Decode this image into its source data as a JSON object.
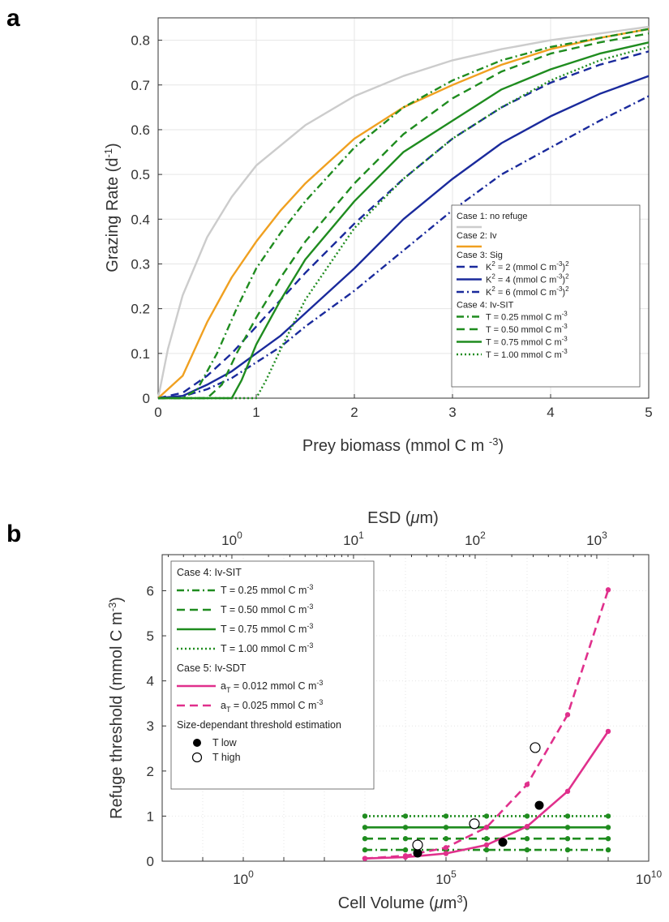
{
  "panels": {
    "a": "a",
    "b": "b"
  },
  "chart_data": [
    {
      "type": "line",
      "panel": "a",
      "xlabel": "Prey biomass (mmol C m -3)",
      "xlabel_parts": {
        "main": "Prey biomass (mmol C m ",
        "sup": "-3",
        "close": ")"
      },
      "ylabel_parts": {
        "main": "Grazing Rate (d",
        "sup": "-1",
        "close": ")"
      },
      "xlim": [
        0,
        5
      ],
      "ylim": [
        0,
        0.85
      ],
      "xticks": [
        "0",
        "1",
        "2",
        "3",
        "4",
        "5"
      ],
      "yticks": [
        "0",
        "0.1",
        "0.2",
        "0.3",
        "0.4",
        "0.5",
        "0.6",
        "0.7",
        "0.8"
      ],
      "grid": true,
      "legend_position": "bottom-right",
      "colors": {
        "grey": "#cccccc",
        "orange": "#f0a020",
        "blue": "#1a2a9c",
        "green": "#1f8c1f"
      },
      "legend": [
        {
          "label": "Case 1: no refuge",
          "header": true,
          "swatch": "grey"
        },
        {
          "label": "Case 2: Iv",
          "header": true,
          "swatch": "orange"
        },
        {
          "label": "Case 3: Sig",
          "header": true
        },
        {
          "label": "K",
          "sup1": "2",
          "mid": " = 2 (mmol C m",
          "sup2": "-3",
          "end": ")",
          "sup3": "2",
          "color": "blue",
          "dash": "dashed"
        },
        {
          "label": "K",
          "sup1": "2",
          "mid": " = 4 (mmol C m",
          "sup2": "-3",
          "end": ")",
          "sup3": "2",
          "color": "blue",
          "dash": "solid"
        },
        {
          "label": "K",
          "sup1": "2",
          "mid": " = 6 (mmol C m",
          "sup2": "-3",
          "end": ")",
          "sup3": "2",
          "color": "blue",
          "dash": "dashdot"
        },
        {
          "label": "Case 4: Iv-SIT",
          "header": true
        },
        {
          "label": "T = 0.25 mmol C m",
          "sup1": "-3",
          "color": "green",
          "dash": "dashdot"
        },
        {
          "label": "T = 0.50 mmol C m",
          "sup1": "-3",
          "color": "green",
          "dash": "dashed"
        },
        {
          "label": "T = 0.75 mmol C m",
          "sup1": "-3",
          "color": "green",
          "dash": "solid"
        },
        {
          "label": "T = 1.00 mmol C m",
          "sup1": "-3",
          "color": "green",
          "dash": "dotted"
        }
      ],
      "series": [
        {
          "color": "grey",
          "dash": "solid",
          "x": [
            0,
            0.1,
            0.25,
            0.5,
            0.75,
            1,
            1.5,
            2,
            2.5,
            3,
            3.5,
            4,
            4.5,
            5
          ],
          "y": [
            0,
            0.11,
            0.23,
            0.36,
            0.45,
            0.52,
            0.61,
            0.675,
            0.72,
            0.755,
            0.78,
            0.8,
            0.815,
            0.83
          ]
        },
        {
          "color": "orange",
          "dash": "solid",
          "x": [
            0,
            0.25,
            0.5,
            0.75,
            1,
            1.25,
            1.5,
            2,
            2.5,
            3,
            3.5,
            4,
            4.5,
            5
          ],
          "y": [
            0,
            0.05,
            0.17,
            0.27,
            0.35,
            0.42,
            0.48,
            0.58,
            0.65,
            0.7,
            0.745,
            0.78,
            0.805,
            0.825
          ]
        },
        {
          "color": "blue",
          "dash": "dashed",
          "x": [
            0,
            0.25,
            0.5,
            0.75,
            1,
            1.25,
            1.5,
            2,
            2.5,
            3,
            3.5,
            4,
            4.5,
            5
          ],
          "y": [
            0,
            0.012,
            0.05,
            0.1,
            0.16,
            0.22,
            0.28,
            0.39,
            0.49,
            0.58,
            0.65,
            0.705,
            0.745,
            0.775
          ]
        },
        {
          "color": "blue",
          "dash": "solid",
          "x": [
            0,
            0.25,
            0.5,
            0.75,
            1,
            1.25,
            1.5,
            2,
            2.5,
            3,
            3.5,
            4,
            4.5,
            5
          ],
          "y": [
            0,
            0.005,
            0.03,
            0.06,
            0.1,
            0.14,
            0.19,
            0.29,
            0.4,
            0.49,
            0.57,
            0.63,
            0.68,
            0.72
          ]
        },
        {
          "color": "blue",
          "dash": "dashdot",
          "x": [
            0,
            0.25,
            0.5,
            0.75,
            1,
            1.25,
            1.5,
            2,
            2.5,
            3,
            3.5,
            4,
            4.5,
            5
          ],
          "y": [
            0,
            0.004,
            0.02,
            0.045,
            0.08,
            0.115,
            0.16,
            0.24,
            0.33,
            0.42,
            0.5,
            0.56,
            0.62,
            0.675
          ]
        },
        {
          "color": "green",
          "dash": "dashdot",
          "x": [
            0,
            0.25,
            0.4,
            0.6,
            0.8,
            1,
            1.25,
            1.5,
            2,
            2.5,
            3,
            3.5,
            4,
            4.5,
            5
          ],
          "y": [
            0,
            0,
            0.02,
            0.1,
            0.2,
            0.29,
            0.37,
            0.44,
            0.56,
            0.65,
            0.71,
            0.755,
            0.785,
            0.805,
            0.825
          ]
        },
        {
          "color": "green",
          "dash": "dashed",
          "x": [
            0,
            0.5,
            0.65,
            0.8,
            1,
            1.25,
            1.5,
            2,
            2.5,
            3,
            3.5,
            4,
            4.5,
            5
          ],
          "y": [
            0,
            0,
            0.03,
            0.1,
            0.18,
            0.27,
            0.35,
            0.48,
            0.59,
            0.67,
            0.73,
            0.77,
            0.795,
            0.815
          ]
        },
        {
          "color": "green",
          "dash": "solid",
          "x": [
            0,
            0.75,
            0.85,
            1,
            1.25,
            1.5,
            2,
            2.5,
            3,
            3.5,
            4,
            4.5,
            5
          ],
          "y": [
            0,
            0,
            0.04,
            0.12,
            0.22,
            0.31,
            0.44,
            0.55,
            0.62,
            0.69,
            0.735,
            0.77,
            0.795
          ]
        },
        {
          "color": "green",
          "dash": "dotted",
          "x": [
            0,
            1,
            1.1,
            1.25,
            1.5,
            2,
            2.5,
            3,
            3.5,
            4,
            4.5,
            5
          ],
          "y": [
            0,
            0,
            0.04,
            0.11,
            0.22,
            0.38,
            0.49,
            0.58,
            0.65,
            0.71,
            0.755,
            0.785
          ]
        }
      ]
    },
    {
      "type": "line",
      "panel": "b",
      "title_parts": {
        "main": "ESD (",
        "italic": "μ",
        "end": "m)"
      },
      "xlabel_parts": {
        "main": "Cell Volume (",
        "italic": "μ",
        "end": "m",
        "sup": "3",
        "close": ")"
      },
      "ylabel_parts": {
        "main": "Refuge threshold (mmol C m",
        "sup": "-3",
        "close": ")"
      },
      "x_scale": "log",
      "xlim_log10": [
        -2,
        10
      ],
      "x2_scale": "log",
      "ylim": [
        0,
        6.8
      ],
      "xticks": [
        {
          "base": "10",
          "exp": "0"
        },
        {
          "base": "10",
          "exp": "5"
        },
        {
          "base": "10",
          "exp": "10"
        }
      ],
      "x2ticks": [
        {
          "base": "10",
          "exp": "0"
        },
        {
          "base": "10",
          "exp": "1"
        },
        {
          "base": "10",
          "exp": "2"
        },
        {
          "base": "10",
          "exp": "3"
        }
      ],
      "yticks": [
        "0",
        "1",
        "2",
        "3",
        "4",
        "5",
        "6"
      ],
      "grid": true,
      "legend_position": "top-left",
      "colors": {
        "green": "#1f8c1f",
        "magenta": "#e0308c",
        "black": "#000000"
      },
      "legend": [
        {
          "label": "Case 4: Iv-SIT",
          "header": true
        },
        {
          "label": "T = 0.25 mmol C m",
          "sup1": "-3",
          "color": "green",
          "dash": "dashdot"
        },
        {
          "label": "T = 0.50 mmol C m",
          "sup1": "-3",
          "color": "green",
          "dash": "dashed"
        },
        {
          "label": "T = 0.75 mmol C m",
          "sup1": "-3",
          "color": "green",
          "dash": "solid"
        },
        {
          "label": "T = 1.00 mmol C m",
          "sup1": "-3",
          "color": "green",
          "dash": "dotted"
        },
        {
          "label": "Case 5: Iv-SDT",
          "header": true
        },
        {
          "label": "a",
          "sub1": "T",
          "mid": " = 0.012 mmol C m",
          "sup2": "-3",
          "color": "magenta",
          "dash": "solid"
        },
        {
          "label": "a",
          "sub1": "T",
          "mid": " = 0.025 mmol C m",
          "sup2": "-3",
          "color": "magenta",
          "dash": "dashed"
        },
        {
          "label": "Size-dependant threshold estimation",
          "header": true
        },
        {
          "label": "T low",
          "marker": "filled"
        },
        {
          "label": "T high",
          "marker": "open"
        }
      ],
      "series": [
        {
          "color": "green",
          "dash": "dashdot",
          "log10x": [
            3,
            4,
            5,
            6,
            7,
            8,
            9
          ],
          "y": [
            0.25,
            0.25,
            0.25,
            0.25,
            0.25,
            0.25,
            0.25
          ]
        },
        {
          "color": "green",
          "dash": "dashed",
          "log10x": [
            3,
            4,
            5,
            6,
            7,
            8,
            9
          ],
          "y": [
            0.5,
            0.5,
            0.5,
            0.5,
            0.5,
            0.5,
            0.5
          ]
        },
        {
          "color": "green",
          "dash": "solid",
          "log10x": [
            3,
            4,
            5,
            6,
            7,
            8,
            9
          ],
          "y": [
            0.75,
            0.75,
            0.75,
            0.75,
            0.75,
            0.75,
            0.75
          ]
        },
        {
          "color": "green",
          "dash": "dotted",
          "log10x": [
            3,
            4,
            5,
            6,
            7,
            8,
            9
          ],
          "y": [
            1,
            1,
            1,
            1,
            1,
            1,
            1
          ]
        },
        {
          "color": "magenta",
          "dash": "solid",
          "log10x": [
            3,
            4,
            5,
            6,
            7,
            8,
            9
          ],
          "y": [
            0.06,
            0.09,
            0.17,
            0.36,
            0.77,
            1.55,
            2.88
          ]
        },
        {
          "color": "magenta",
          "dash": "dashed",
          "log10x": [
            3,
            4,
            5,
            6,
            7,
            8,
            9
          ],
          "y": [
            0.06,
            0.12,
            0.3,
            0.75,
            1.7,
            3.25,
            6.02
          ]
        }
      ],
      "points_low": {
        "log10x": [
          4.3,
          6.4,
          7.3
        ],
        "y": [
          0.18,
          0.42,
          1.24
        ]
      },
      "points_high": {
        "log10x": [
          4.3,
          5.7,
          7.2
        ],
        "y": [
          0.36,
          0.83,
          2.52
        ]
      }
    }
  ]
}
